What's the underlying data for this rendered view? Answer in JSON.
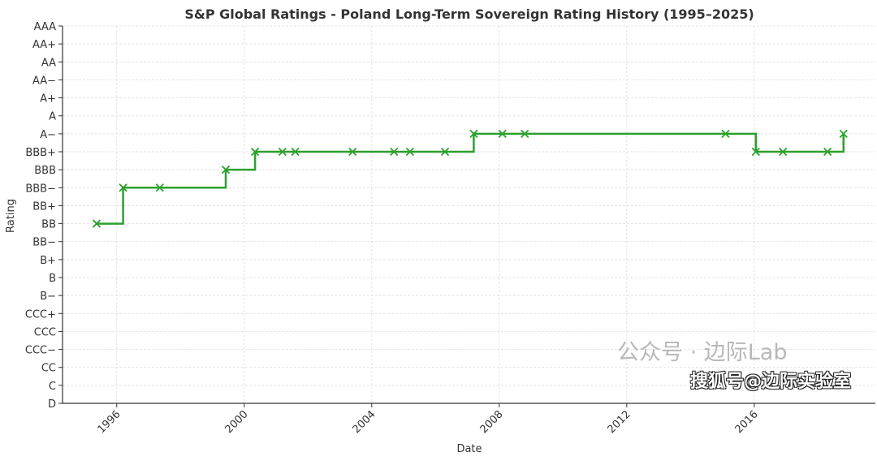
{
  "chart_data": {
    "type": "line",
    "style": "step-post with x markers",
    "title": "S&P Global Ratings - Poland Long-Term Sovereign Rating History (1995–2025)",
    "xlabel": "Date",
    "ylabel": "Rating",
    "xlim": [
      1994.3,
      2019.8
    ],
    "x_ticks": [
      1996,
      2000,
      2004,
      2008,
      2012,
      2016
    ],
    "x_tick_labels": [
      "1996",
      "2000",
      "2004",
      "2008",
      "2012",
      "2016"
    ],
    "y_tick_labels": [
      "D",
      "C",
      "CC",
      "CCC−",
      "CCC",
      "CCC+",
      "B−",
      "B",
      "B+",
      "BB−",
      "BB",
      "BB+",
      "BBB−",
      "BBB",
      "BBB+",
      "A−",
      "A",
      "A+",
      "AA−",
      "AA",
      "AA+",
      "AAA"
    ],
    "grid": true,
    "series": [
      {
        "name": "Rating",
        "color": "#2ca02c",
        "x": [
          1995.37,
          1996.2,
          1997.35,
          1999.42,
          2000.34,
          2001.2,
          2001.6,
          2003.4,
          2004.7,
          2005.2,
          2006.3,
          2007.2,
          2008.1,
          2008.8,
          2015.1,
          2016.05,
          2016.9,
          2018.3,
          2018.8
        ],
        "y": [
          "BB",
          "BBB−",
          "BBB−",
          "BBB",
          "BBB+",
          "BBB+",
          "BBB+",
          "BBB+",
          "BBB+",
          "BBB+",
          "BBB+",
          "A−",
          "A−",
          "A−",
          "A−",
          "BBB+",
          "BBB+",
          "BBB+",
          "A−"
        ]
      }
    ]
  },
  "watermark": {
    "line1": "公众号 · 边际Lab",
    "line2": "搜狐号@边际实验室"
  }
}
